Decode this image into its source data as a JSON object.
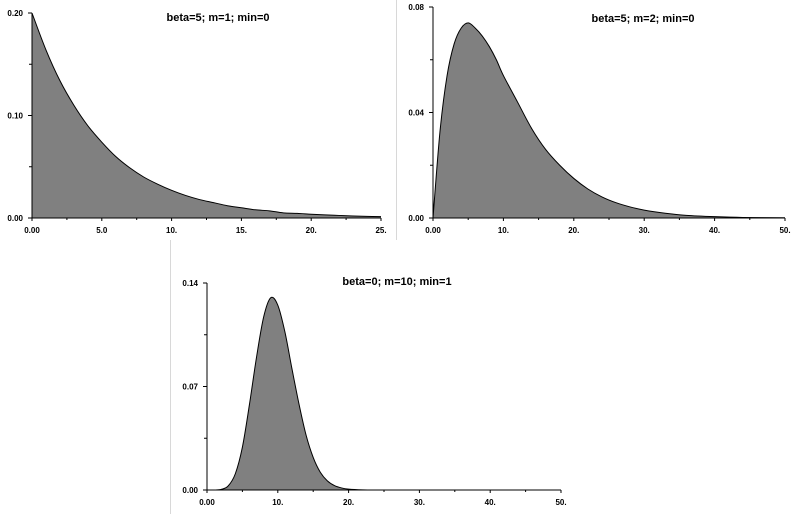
{
  "chart_data": [
    {
      "type": "area",
      "title": "beta=5; m=1; min=0",
      "xlabel": "",
      "ylabel": "",
      "xlim": [
        0,
        25
      ],
      "ylim": [
        0,
        0.2
      ],
      "x_ticks": [
        "0.00",
        "5.0",
        "10.",
        "15.",
        "20.",
        "25."
      ],
      "y_ticks": [
        "0.00",
        "0.10",
        "0.20"
      ],
      "grid": false,
      "series": [
        {
          "x": [
            0,
            1,
            2,
            3,
            4,
            5,
            6,
            7,
            8,
            9,
            10,
            11,
            12,
            13,
            14,
            15,
            16,
            17,
            18,
            19,
            20,
            21,
            22,
            23,
            24,
            25
          ],
          "y": [
            0.2,
            0.164,
            0.134,
            0.11,
            0.09,
            0.074,
            0.06,
            0.049,
            0.04,
            0.033,
            0.027,
            0.022,
            0.018,
            0.015,
            0.012,
            0.01,
            0.008,
            0.007,
            0.005,
            0.0045,
            0.0037,
            0.003,
            0.0025,
            0.002,
            0.0016,
            0.0013
          ]
        }
      ],
      "fill_color": "#808080"
    },
    {
      "type": "area",
      "title": "beta=5; m=2; min=0",
      "xlabel": "",
      "ylabel": "",
      "xlim": [
        0,
        50
      ],
      "ylim": [
        0,
        0.08
      ],
      "x_ticks": [
        "0.00",
        "10.",
        "20.",
        "30.",
        "40.",
        "50."
      ],
      "y_ticks": [
        "0.00",
        "0.04",
        "0.08"
      ],
      "grid": false,
      "series": [
        {
          "x": [
            0,
            1,
            2,
            3,
            4,
            5,
            6,
            7,
            8,
            9,
            10,
            12,
            14,
            16,
            18,
            20,
            22,
            24,
            26,
            28,
            30,
            33,
            36,
            40,
            44,
            50
          ],
          "y": [
            0,
            0.033,
            0.054,
            0.066,
            0.072,
            0.074,
            0.072,
            0.069,
            0.065,
            0.06,
            0.054,
            0.044,
            0.034,
            0.026,
            0.02,
            0.015,
            0.011,
            0.008,
            0.0058,
            0.0042,
            0.003,
            0.0018,
            0.001,
            0.0005,
            0.0002,
            0.0001
          ]
        }
      ],
      "fill_color": "#808080"
    },
    {
      "type": "area",
      "title": "beta=0; m=10; min=1",
      "xlabel": "",
      "ylabel": "",
      "xlim": [
        0,
        50
      ],
      "ylim": [
        0,
        0.14
      ],
      "x_ticks": [
        "0.00",
        "10.",
        "20.",
        "30.",
        "40.",
        "50."
      ],
      "y_ticks": [
        "0.00",
        "0.07",
        "0.14"
      ],
      "grid": false,
      "series": [
        {
          "x": [
            0,
            1,
            2,
            3,
            4,
            5,
            6,
            7,
            8,
            9,
            10,
            11,
            12,
            13,
            14,
            15,
            16,
            17,
            18,
            19,
            20,
            22,
            24,
            26,
            30,
            40,
            50
          ],
          "y": [
            0,
            0,
            0.0004,
            0.0028,
            0.011,
            0.029,
            0.058,
            0.09,
            0.117,
            0.13,
            0.125,
            0.107,
            0.082,
            0.058,
            0.037,
            0.022,
            0.012,
            0.0062,
            0.003,
            0.0014,
            0.0006,
            0.0001,
            0,
            0,
            0,
            0,
            0
          ]
        }
      ],
      "fill_color": "#808080"
    }
  ]
}
